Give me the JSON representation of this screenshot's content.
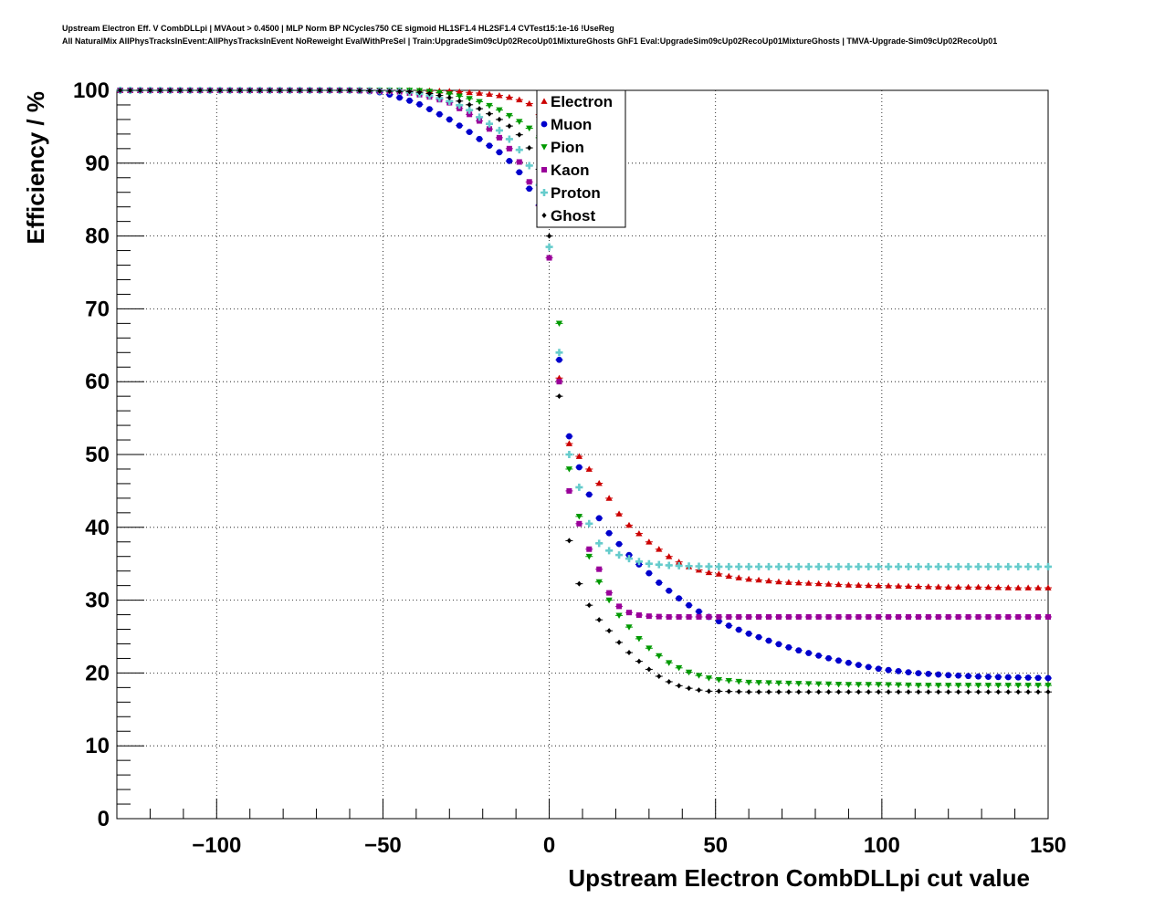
{
  "title_line1": "Upstream Electron Eff. V CombDLLpi | MVAout > 0.4500 | MLP Norm BP NCycles750 CE sigmoid HL1SF1.4 HL2SF1.4 CVTest15:1e-16 !UseReg",
  "title_line2": "All NaturalMix AllPhysTracksInEvent:AllPhysTracksInEvent NoReweight EvalWithPreSel | Train:UpgradeSim09cUp02RecoUp01MixtureGhosts GhF1 Eval:UpgradeSim09cUp02RecoUp01MixtureGhosts | TMVA-Upgrade-Sim09cUp02RecoUp01",
  "chart_data": {
    "type": "scatter",
    "xlabel": "Upstream Electron CombDLLpi cut value",
    "ylabel": "Efficiency / %",
    "xlim": [
      -130,
      150
    ],
    "ylim": [
      0,
      100
    ],
    "xticks": [
      -100,
      -50,
      0,
      50,
      100,
      150
    ],
    "xtick_labels": [
      "−100",
      "−50",
      "0",
      "50",
      "100",
      "150"
    ],
    "yticks": [
      0,
      10,
      20,
      30,
      40,
      50,
      60,
      70,
      80,
      90,
      100
    ],
    "grid": true,
    "legend_position": "top-center",
    "series": [
      {
        "name": "Electron",
        "color": "#cc0000",
        "marker": "triangle-up",
        "points": [
          [
            -130,
            100
          ],
          [
            -60,
            100
          ],
          [
            -40,
            100
          ],
          [
            -30,
            99.9
          ],
          [
            -20,
            99.6
          ],
          [
            -15,
            99.3
          ],
          [
            -10,
            98.9
          ],
          [
            -5,
            98
          ],
          [
            -2,
            96
          ],
          [
            0,
            88
          ],
          [
            1,
            80
          ],
          [
            2,
            70
          ],
          [
            3,
            60.5
          ],
          [
            4,
            55
          ],
          [
            5,
            53
          ],
          [
            6,
            51.5
          ],
          [
            8,
            50.3
          ],
          [
            10,
            49.2
          ],
          [
            12,
            48
          ],
          [
            14,
            46.8
          ],
          [
            16,
            45.3
          ],
          [
            18,
            44
          ],
          [
            20,
            42.5
          ],
          [
            22,
            41.2
          ],
          [
            24,
            40.3
          ],
          [
            26,
            39.5
          ],
          [
            28,
            38.8
          ],
          [
            30,
            38
          ],
          [
            32,
            37.3
          ],
          [
            34,
            36.7
          ],
          [
            36,
            36
          ],
          [
            38,
            35.5
          ],
          [
            40,
            35
          ],
          [
            42,
            34.6
          ],
          [
            44,
            34.3
          ],
          [
            46,
            34
          ],
          [
            48,
            33.8
          ],
          [
            50,
            33.7
          ],
          [
            55,
            33.2
          ],
          [
            60,
            32.9
          ],
          [
            65,
            32.7
          ],
          [
            70,
            32.5
          ],
          [
            80,
            32.3
          ],
          [
            90,
            32.1
          ],
          [
            100,
            32
          ],
          [
            110,
            31.9
          ],
          [
            120,
            31.8
          ],
          [
            130,
            31.8
          ],
          [
            140,
            31.7
          ],
          [
            150,
            31.7
          ]
        ]
      },
      {
        "name": "Muon",
        "color": "#0000cc",
        "marker": "circle",
        "points": [
          [
            -130,
            100
          ],
          [
            -60,
            100
          ],
          [
            -55,
            99.9
          ],
          [
            -50,
            99.7
          ],
          [
            -45,
            99
          ],
          [
            -40,
            98.3
          ],
          [
            -35,
            97.2
          ],
          [
            -30,
            96
          ],
          [
            -25,
            94.6
          ],
          [
            -20,
            93
          ],
          [
            -15,
            91.5
          ],
          [
            -10,
            89.5
          ],
          [
            -8,
            88
          ],
          [
            -6,
            86.5
          ],
          [
            -4,
            85
          ],
          [
            -2,
            83.5
          ],
          [
            0,
            82
          ],
          [
            1,
            79
          ],
          [
            2,
            71
          ],
          [
            3,
            63
          ],
          [
            4,
            58
          ],
          [
            5,
            55
          ],
          [
            6,
            52.5
          ],
          [
            8,
            49.5
          ],
          [
            10,
            47
          ],
          [
            12,
            44.5
          ],
          [
            14,
            42
          ],
          [
            16,
            40.5
          ],
          [
            18,
            39.2
          ],
          [
            20,
            38.2
          ],
          [
            22,
            37.2
          ],
          [
            24,
            36.2
          ],
          [
            26,
            35.3
          ],
          [
            28,
            34.5
          ],
          [
            30,
            33.7
          ],
          [
            32,
            32.8
          ],
          [
            34,
            32
          ],
          [
            36,
            31.3
          ],
          [
            38,
            30.6
          ],
          [
            40,
            29.9
          ],
          [
            42,
            29.3
          ],
          [
            44,
            28.7
          ],
          [
            46,
            28.2
          ],
          [
            48,
            27.7
          ],
          [
            50,
            27.3
          ],
          [
            55,
            26.3
          ],
          [
            60,
            25.4
          ],
          [
            65,
            24.6
          ],
          [
            70,
            23.8
          ],
          [
            75,
            23.1
          ],
          [
            80,
            22.5
          ],
          [
            85,
            21.9
          ],
          [
            90,
            21.4
          ],
          [
            95,
            20.9
          ],
          [
            100,
            20.5
          ],
          [
            110,
            20
          ],
          [
            120,
            19.7
          ],
          [
            130,
            19.5
          ],
          [
            140,
            19.4
          ],
          [
            150,
            19.3
          ]
        ]
      },
      {
        "name": "Pion",
        "color": "#009900",
        "marker": "triangle-down",
        "points": [
          [
            -130,
            100
          ],
          [
            -60,
            100
          ],
          [
            -40,
            100
          ],
          [
            -35,
            99.8
          ],
          [
            -30,
            99.5
          ],
          [
            -25,
            99
          ],
          [
            -20,
            98.3
          ],
          [
            -15,
            97.3
          ],
          [
            -10,
            96
          ],
          [
            -5,
            94.5
          ],
          [
            -3,
            93.5
          ],
          [
            0,
            86
          ],
          [
            1,
            80
          ],
          [
            2,
            76
          ],
          [
            3,
            68
          ],
          [
            4,
            58
          ],
          [
            5,
            51.5
          ],
          [
            6,
            48
          ],
          [
            8,
            43
          ],
          [
            10,
            40
          ],
          [
            12,
            36
          ],
          [
            14,
            33.5
          ],
          [
            16,
            31.5
          ],
          [
            18,
            30
          ],
          [
            20,
            28.5
          ],
          [
            22,
            27.3
          ],
          [
            24,
            26.3
          ],
          [
            26,
            25.2
          ],
          [
            28,
            24.2
          ],
          [
            30,
            23.4
          ],
          [
            32,
            22.7
          ],
          [
            34,
            22
          ],
          [
            36,
            21.4
          ],
          [
            38,
            20.9
          ],
          [
            40,
            20.5
          ],
          [
            42,
            20.1
          ],
          [
            44,
            19.8
          ],
          [
            46,
            19.5
          ],
          [
            48,
            19.3
          ],
          [
            50,
            19.1
          ],
          [
            55,
            18.9
          ],
          [
            60,
            18.7
          ],
          [
            70,
            18.6
          ],
          [
            80,
            18.5
          ],
          [
            90,
            18.4
          ],
          [
            100,
            18.4
          ],
          [
            110,
            18.3
          ],
          [
            120,
            18.3
          ],
          [
            130,
            18.3
          ],
          [
            140,
            18.3
          ],
          [
            150,
            18.3
          ]
        ]
      },
      {
        "name": "Kaon",
        "color": "#990099",
        "marker": "square",
        "points": [
          [
            -130,
            100
          ],
          [
            -60,
            100
          ],
          [
            -45,
            99.8
          ],
          [
            -40,
            99.5
          ],
          [
            -35,
            99
          ],
          [
            -30,
            98.3
          ],
          [
            -25,
            97
          ],
          [
            -20,
            95.5
          ],
          [
            -15,
            93.5
          ],
          [
            -10,
            91
          ],
          [
            -7,
            88.5
          ],
          [
            -4,
            85.3
          ],
          [
            -2,
            83
          ],
          [
            0,
            77
          ],
          [
            1,
            72
          ],
          [
            2,
            67
          ],
          [
            3,
            60
          ],
          [
            4,
            54
          ],
          [
            5,
            48
          ],
          [
            6,
            45
          ],
          [
            8,
            42
          ],
          [
            10,
            39
          ],
          [
            12,
            37
          ],
          [
            14,
            35.5
          ],
          [
            16,
            33
          ],
          [
            18,
            31
          ],
          [
            20,
            29.5
          ],
          [
            22,
            28.8
          ],
          [
            24,
            28.3
          ],
          [
            26,
            28
          ],
          [
            28,
            27.9
          ],
          [
            30,
            27.8
          ],
          [
            35,
            27.7
          ],
          [
            40,
            27.7
          ],
          [
            50,
            27.7
          ],
          [
            60,
            27.7
          ],
          [
            70,
            27.7
          ],
          [
            80,
            27.7
          ],
          [
            90,
            27.7
          ],
          [
            100,
            27.7
          ],
          [
            110,
            27.7
          ],
          [
            120,
            27.7
          ],
          [
            130,
            27.7
          ],
          [
            140,
            27.7
          ],
          [
            150,
            27.7
          ]
        ]
      },
      {
        "name": "Proton",
        "color": "#66cccc",
        "marker": "cross",
        "points": [
          [
            -130,
            100
          ],
          [
            -60,
            100
          ],
          [
            -45,
            99.9
          ],
          [
            -40,
            99.6
          ],
          [
            -35,
            99.2
          ],
          [
            -30,
            98.5
          ],
          [
            -25,
            97.6
          ],
          [
            -20,
            96
          ],
          [
            -15,
            94.5
          ],
          [
            -10,
            92.5
          ],
          [
            -7,
            90.5
          ],
          [
            -4,
            88
          ],
          [
            -2,
            86
          ],
          [
            0,
            78.5
          ],
          [
            1,
            74
          ],
          [
            2,
            70.5
          ],
          [
            3,
            64
          ],
          [
            4,
            58
          ],
          [
            5,
            53.5
          ],
          [
            6,
            50
          ],
          [
            8,
            47
          ],
          [
            10,
            44
          ],
          [
            12,
            40.5
          ],
          [
            14,
            38.3
          ],
          [
            16,
            37.3
          ],
          [
            18,
            36.8
          ],
          [
            20,
            36.4
          ],
          [
            22,
            36
          ],
          [
            24,
            35.7
          ],
          [
            26,
            35.4
          ],
          [
            28,
            35.2
          ],
          [
            30,
            35
          ],
          [
            35,
            34.8
          ],
          [
            40,
            34.7
          ],
          [
            50,
            34.6
          ],
          [
            60,
            34.6
          ],
          [
            70,
            34.6
          ],
          [
            80,
            34.6
          ],
          [
            90,
            34.6
          ],
          [
            100,
            34.6
          ],
          [
            110,
            34.6
          ],
          [
            120,
            34.6
          ],
          [
            130,
            34.6
          ],
          [
            140,
            34.6
          ],
          [
            150,
            34.6
          ]
        ]
      },
      {
        "name": "Ghost",
        "color": "#000000",
        "marker": "diamond",
        "points": [
          [
            -130,
            100
          ],
          [
            -60,
            100
          ],
          [
            -40,
            99.8
          ],
          [
            -35,
            99.5
          ],
          [
            -30,
            99
          ],
          [
            -25,
            98.2
          ],
          [
            -20,
            97.3
          ],
          [
            -15,
            96
          ],
          [
            -10,
            94.5
          ],
          [
            -5,
            91.5
          ],
          [
            -2,
            88
          ],
          [
            0,
            80
          ],
          [
            1,
            72
          ],
          [
            2,
            65
          ],
          [
            3,
            58
          ],
          [
            4,
            47
          ],
          [
            5,
            40.5
          ],
          [
            8,
            33.5
          ],
          [
            10,
            31
          ],
          [
            12,
            29.3
          ],
          [
            14,
            27.8
          ],
          [
            16,
            26.8
          ],
          [
            18,
            25.8
          ],
          [
            20,
            24.7
          ],
          [
            22,
            23.7
          ],
          [
            24,
            22.8
          ],
          [
            26,
            22
          ],
          [
            28,
            21.2
          ],
          [
            30,
            20.5
          ],
          [
            32,
            19.8
          ],
          [
            34,
            19.3
          ],
          [
            36,
            18.8
          ],
          [
            38,
            18.4
          ],
          [
            40,
            18.1
          ],
          [
            42,
            17.9
          ],
          [
            44,
            17.7
          ],
          [
            46,
            17.6
          ],
          [
            48,
            17.5
          ],
          [
            50,
            17.5
          ],
          [
            60,
            17.4
          ],
          [
            70,
            17.4
          ],
          [
            80,
            17.4
          ],
          [
            90,
            17.4
          ],
          [
            100,
            17.4
          ],
          [
            110,
            17.4
          ],
          [
            120,
            17.4
          ],
          [
            130,
            17.4
          ],
          [
            140,
            17.4
          ],
          [
            150,
            17.4
          ]
        ]
      }
    ]
  }
}
